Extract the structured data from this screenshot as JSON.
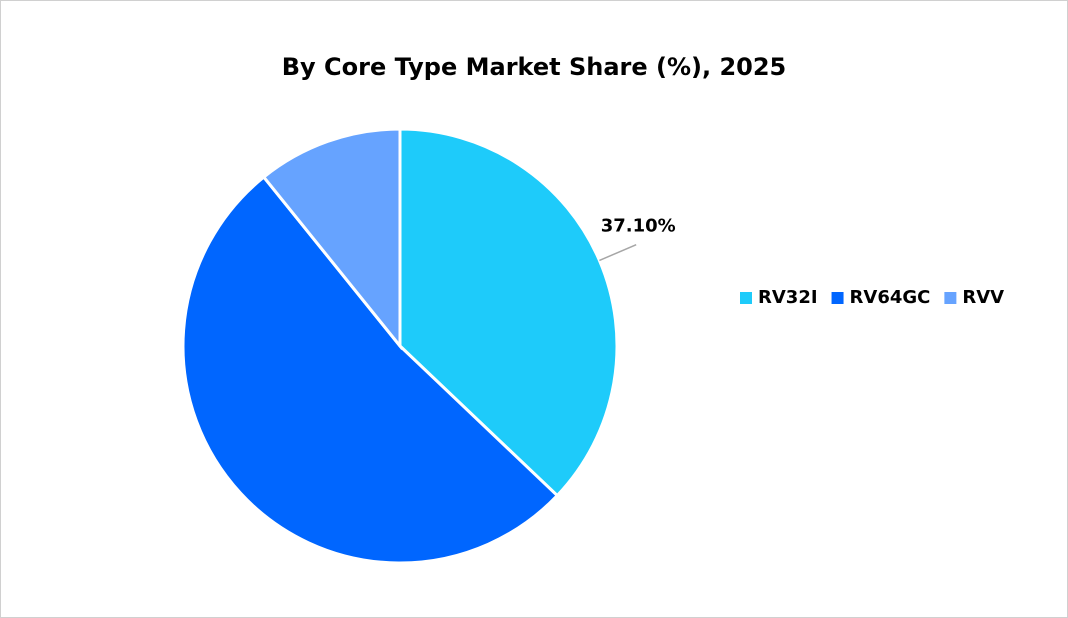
{
  "chart_data": {
    "type": "pie",
    "title": "By Core Type Market Share (%), 2025",
    "categories": [
      "RV32I",
      "RV64GC",
      "RVV"
    ],
    "values": [
      37.1,
      52.1,
      10.8
    ],
    "value_labels": [
      "37.10%",
      null,
      null
    ],
    "colors": [
      "#1ecbfa",
      "#0066ff",
      "#66a3ff"
    ],
    "legend": "right"
  }
}
